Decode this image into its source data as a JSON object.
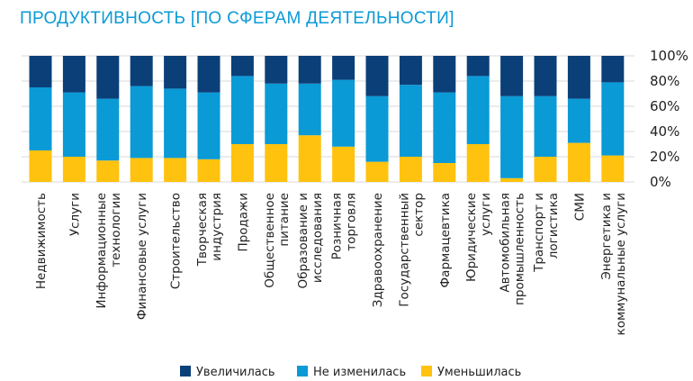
{
  "header": {
    "title": "ПРОДУКТИВНОСТЬ [ПО СФЕРАМ ДЕЯТЕЛЬНОСТИ]"
  },
  "colors": {
    "increased": "#0b3f78",
    "unchanged": "#0a9ad6",
    "decreased": "#ffc20e"
  },
  "chart_data": {
    "type": "bar",
    "stacked": true,
    "title": "ПРОДУКТИВНОСТЬ [ПО СФЕРАМ ДЕЯТЕЛЬНОСТИ]",
    "xlabel": "",
    "ylabel": "",
    "ylim": [
      0,
      100
    ],
    "yticks": [
      "0%",
      "20%",
      "40%",
      "60%",
      "80%",
      "100%"
    ],
    "grid": true,
    "legend_position": "bottom",
    "categories": [
      [
        "Недвижимость"
      ],
      [
        "Услуги"
      ],
      [
        "Информационные",
        "технологии"
      ],
      [
        "Финансовые услуги"
      ],
      [
        "Строительство"
      ],
      [
        "Творческая",
        "индустрия"
      ],
      [
        "Продажи"
      ],
      [
        "Общественное",
        "питание"
      ],
      [
        "Образование и",
        "исследования"
      ],
      [
        "Розничная",
        "торговля"
      ],
      [
        "Здравоохранение"
      ],
      [
        "Государственный",
        "сектор"
      ],
      [
        "Фармацевтика"
      ],
      [
        "Юридические",
        "услуги"
      ],
      [
        "Автомобильная",
        "промышленность"
      ],
      [
        "Транспорт и",
        "логистика"
      ],
      [
        "СМИ"
      ],
      [
        "Энергетика и",
        "коммунальные услуги"
      ]
    ],
    "series": [
      {
        "name": "Уменьшилась",
        "key": "decreased",
        "values": [
          25,
          20,
          17,
          19,
          19,
          18,
          30,
          30,
          37,
          28,
          16,
          20,
          15,
          30,
          3,
          20,
          31,
          21
        ]
      },
      {
        "name": "Не изменилась",
        "key": "unchanged",
        "values": [
          50,
          51,
          49,
          57,
          55,
          53,
          54,
          48,
          41,
          53,
          52,
          57,
          56,
          54,
          65,
          48,
          35,
          58
        ]
      },
      {
        "name": "Увеличилась",
        "key": "increased",
        "values": [
          25,
          29,
          34,
          24,
          26,
          29,
          16,
          22,
          22,
          19,
          32,
          23,
          29,
          16,
          32,
          32,
          34,
          21
        ]
      }
    ],
    "legend": [
      "Увеличилась",
      "Не изменилась",
      "Уменьшилась"
    ]
  }
}
